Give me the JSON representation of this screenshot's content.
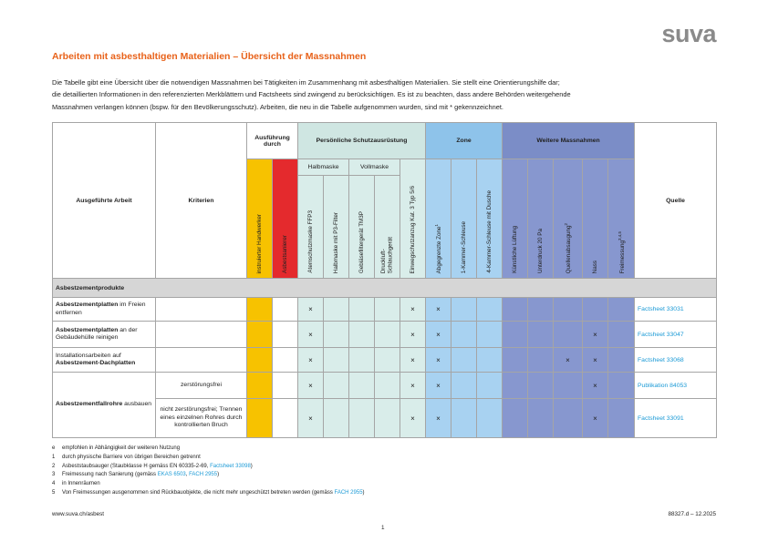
{
  "header": {
    "logo": "suva",
    "title": "Arbeiten mit asbesthaltigen Materialien – Übersicht der Massnahmen",
    "intro": [
      "Die Tabelle gibt eine Übersicht über die notwendigen Massnahmen bei Tätigkeiten im Zusammenhang mit asbesthaltigen Materialien. Sie stellt eine Orientierungshilfe dar;",
      "die detaillierten Informationen in den referenzierten Merkblättern und Factsheets sind zwingend zu berücksichtigen. Es ist zu beachten, dass andere Behörden weitergehende",
      "Massnahmen verlangen können (bspw. für den Bevölkerungsschutz). Arbeiten, die neu in die Tabelle aufgenommen wurden, sind mit * gekennzeichnet."
    ]
  },
  "table": {
    "work_header": "Ausgeführte Arbeit",
    "criteria_header": "Kriterien",
    "source_header": "Quelle",
    "groups": [
      {
        "label": "Ausführung durch",
        "columns": [
          {
            "label": "instruierter Handwerker"
          },
          {
            "label": "Asbestsanierer"
          }
        ]
      },
      {
        "label": "Persönliche Schutzausrüstung",
        "subgroups": [
          {
            "label": "Halbmaske",
            "columns": [
              {
                "label": "Atemschutzmaske FFP3"
              },
              {
                "label": "Halbmaske mit P3-Filter"
              }
            ]
          },
          {
            "label": "Vollmaske",
            "columns": [
              {
                "label": "Gebläsefiltergerät TM3P"
              },
              {
                "label": "Druckluft-\nSchlauchgerät"
              }
            ]
          },
          {
            "columns": [
              {
                "label": "Einwegschutzanzug Kat. 3 Typ 5/6"
              }
            ]
          }
        ]
      },
      {
        "label": "Zone",
        "columns": [
          {
            "label": "Abgegrenzte Zone",
            "sup": "1"
          },
          {
            "label": "1-Kammer-Schleuse"
          },
          {
            "label": "4-Kammer-Schleuse mit Dusche"
          }
        ]
      },
      {
        "label": "Weitere Massnahmen",
        "columns": [
          {
            "label": "Künstliche Lüftung"
          },
          {
            "label": "Unterdruck 20 Pa"
          },
          {
            "label": "Quellenabsaugung",
            "sup": "2"
          },
          {
            "label": "Nass"
          },
          {
            "label": "Freimessung",
            "sup": "3,4,5"
          }
        ]
      }
    ],
    "sections": [
      {
        "title": "Asbestzementprodukte",
        "rows": [
          {
            "work": [
              {
                "text": "Asbestzementplatten",
                "bold": true
              },
              {
                "text": " im Freien entfernen"
              }
            ],
            "entries": [
              {
                "cells": [
                  null,
                  null,
                  "×",
                  null,
                  null,
                  null,
                  "×",
                  "×",
                  null,
                  null,
                  null,
                  null,
                  null,
                  null,
                  null
                ],
                "source": "Factsheet 33031"
              }
            ]
          },
          {
            "work": [
              {
                "text": "Asbestzementplatten",
                "bold": true
              },
              {
                "text": " an der Gebäudehülle reinigen"
              }
            ],
            "entries": [
              {
                "cells": [
                  null,
                  null,
                  "×",
                  null,
                  null,
                  null,
                  "×",
                  "×",
                  null,
                  null,
                  null,
                  null,
                  null,
                  "×",
                  null
                ],
                "source": "Factsheet 33047"
              }
            ]
          },
          {
            "work": [
              {
                "text": "Installationsarbeiten auf "
              },
              {
                "text": "Asbestzement-Dachplatten",
                "bold": true
              }
            ],
            "entries": [
              {
                "cells": [
                  null,
                  null,
                  "×",
                  null,
                  null,
                  null,
                  "×",
                  "×",
                  null,
                  null,
                  null,
                  null,
                  "×",
                  "×",
                  null
                ],
                "source": "Factsheet 33068"
              }
            ]
          },
          {
            "work": [
              {
                "text": "Asbestzementfallrohre",
                "bold": true
              },
              {
                "text": " ausbauen"
              }
            ],
            "entries": [
              {
                "criterion": "zerstörungsfrei",
                "cells": [
                  null,
                  null,
                  "×",
                  null,
                  null,
                  null,
                  "×",
                  "×",
                  null,
                  null,
                  null,
                  null,
                  null,
                  "×",
                  null
                ],
                "source": "Publikation 84053"
              },
              {
                "criterion": "nicht zerstörungsfrei; Trennen eines einzelnen Rohres durch kontrollierten Bruch",
                "cells": [
                  null,
                  null,
                  "×",
                  null,
                  null,
                  null,
                  "×",
                  "×",
                  null,
                  null,
                  null,
                  null,
                  null,
                  "×",
                  null
                ],
                "source": "Factsheet 33091"
              }
            ]
          }
        ]
      }
    ]
  },
  "footnotes": [
    {
      "marker": "e",
      "parts": [
        {
          "text": "empfohlen in Abhängigkeit der weiteren Nutzung"
        }
      ]
    },
    {
      "marker": "1",
      "parts": [
        {
          "text": "durch physische Barriere von übrigen Bereichen getrennt"
        }
      ]
    },
    {
      "marker": "2",
      "parts": [
        {
          "text": "Asbeststaubsauger (Staubklasse H gemäss EN 60335-2-69, "
        },
        {
          "link": "Factsheet 33098"
        },
        {
          "text": ")"
        }
      ]
    },
    {
      "marker": "3",
      "parts": [
        {
          "text": "Freimessung nach Sanierung (gemäss "
        },
        {
          "link": "EKAS 6503"
        },
        {
          "text": ", "
        },
        {
          "link": "FACH 2955"
        },
        {
          "text": ")"
        }
      ]
    },
    {
      "marker": "4",
      "parts": [
        {
          "text": "in Innenräumen"
        }
      ]
    },
    {
      "marker": "5",
      "parts": [
        {
          "text": "Von Freimessungen ausgenommen sind Rückbauobjekte, die nicht mehr ungeschützt betreten werden (gemäss "
        },
        {
          "link": "FACH 2955"
        },
        {
          "text": ")"
        }
      ]
    }
  ],
  "footer": {
    "url": "www.suva.ch/asbest",
    "page": "1",
    "code": "88327.d – 12.2025"
  }
}
